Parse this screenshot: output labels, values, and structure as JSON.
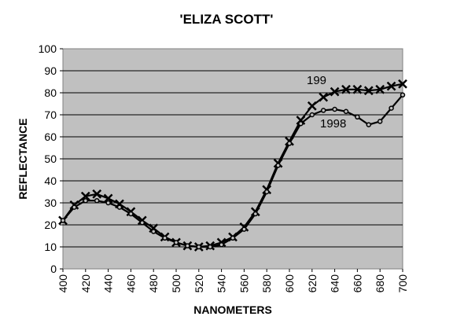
{
  "chart_data": {
    "type": "line",
    "title": "'ELIZA SCOTT'",
    "xlabel": "NANOMETERS",
    "ylabel": "REFLECTANCE",
    "x": [
      400,
      410,
      420,
      430,
      440,
      450,
      460,
      470,
      480,
      490,
      500,
      510,
      520,
      530,
      540,
      550,
      560,
      570,
      580,
      590,
      600,
      610,
      620,
      630,
      640,
      650,
      660,
      670,
      680,
      690,
      700
    ],
    "xlim": [
      400,
      700
    ],
    "ylim": [
      0,
      100
    ],
    "x_ticks": [
      400,
      420,
      440,
      460,
      480,
      500,
      520,
      540,
      560,
      580,
      600,
      620,
      640,
      660,
      680,
      700
    ],
    "y_ticks": [
      0,
      10,
      20,
      30,
      40,
      50,
      60,
      70,
      80,
      90,
      100
    ],
    "grid": "horizontal",
    "plot_background": "#c0c0c0",
    "series": [
      {
        "name": "199",
        "marker": "x",
        "values": [
          22,
          29,
          33,
          34,
          32,
          29.5,
          26,
          22,
          18.5,
          14.5,
          12,
          10.5,
          10,
          10.5,
          12,
          14.5,
          19,
          26,
          36,
          48,
          58,
          67.5,
          74,
          78,
          80.5,
          81.5,
          81.5,
          81,
          81.5,
          83,
          84
        ]
      },
      {
        "name": "1998",
        "marker": "o",
        "values": [
          22,
          28,
          31,
          31,
          30,
          28,
          25,
          21,
          17,
          14,
          12,
          10.5,
          10,
          10,
          11,
          14,
          18,
          25,
          35,
          47,
          57,
          66,
          70,
          72,
          72.5,
          71.5,
          69,
          65.5,
          67,
          73,
          79
        ]
      }
    ]
  }
}
